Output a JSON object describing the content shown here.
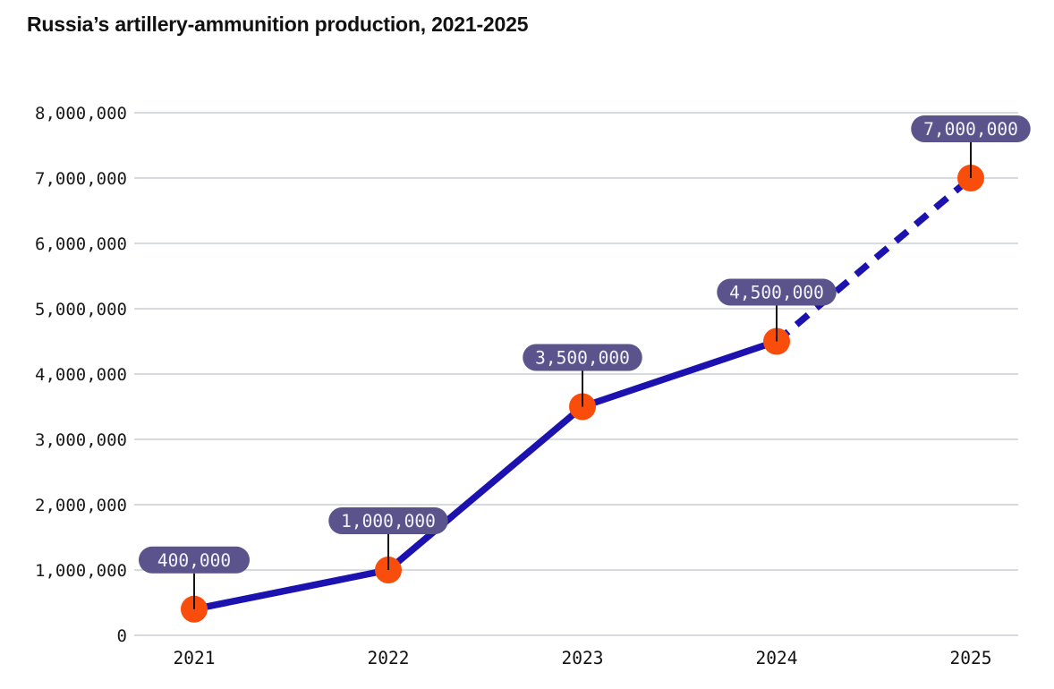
{
  "header": {
    "title": "Russia’s artillery-ammunition production, 2021-2025"
  },
  "chart_data": {
    "type": "line",
    "title": "Russia’s artillery-ammunition production, 2021-2025",
    "categories": [
      "2021",
      "2022",
      "2023",
      "2024",
      "2025"
    ],
    "series": [
      {
        "name": "Artillery-ammunition production",
        "values": [
          400000,
          1000000,
          3500000,
          4500000,
          7000000
        ],
        "point_labels": [
          "400,000",
          "1,000,000",
          "3,500,000",
          "4,500,000",
          "7,000,000"
        ],
        "segment_styles": [
          "solid",
          "solid",
          "solid",
          "dashed"
        ]
      }
    ],
    "xlabel": "",
    "ylabel": "",
    "ylim": [
      0,
      8000000
    ],
    "y_tick_values": [
      0,
      1000000,
      2000000,
      3000000,
      4000000,
      5000000,
      6000000,
      7000000,
      8000000
    ],
    "y_tick_labels": [
      "0",
      "1,000,000",
      "2,000,000",
      "3,000,000",
      "4,000,000",
      "5,000,000",
      "6,000,000",
      "7,000,000",
      "8,000,000"
    ],
    "grid": true,
    "legend_position": "none",
    "dashed_segment_meaning": "final segment (2024 to 2025) drawn dashed"
  },
  "colors": {
    "line": "#1c12b0",
    "point": "#f94d0c",
    "pill_background": "#5a538c",
    "pill_text": "#f4f2fa",
    "grid": "#d7dade",
    "axis_text": "#1a1a1a",
    "title_text": "#111111",
    "callout": "#141414",
    "background": "#ffffff"
  }
}
